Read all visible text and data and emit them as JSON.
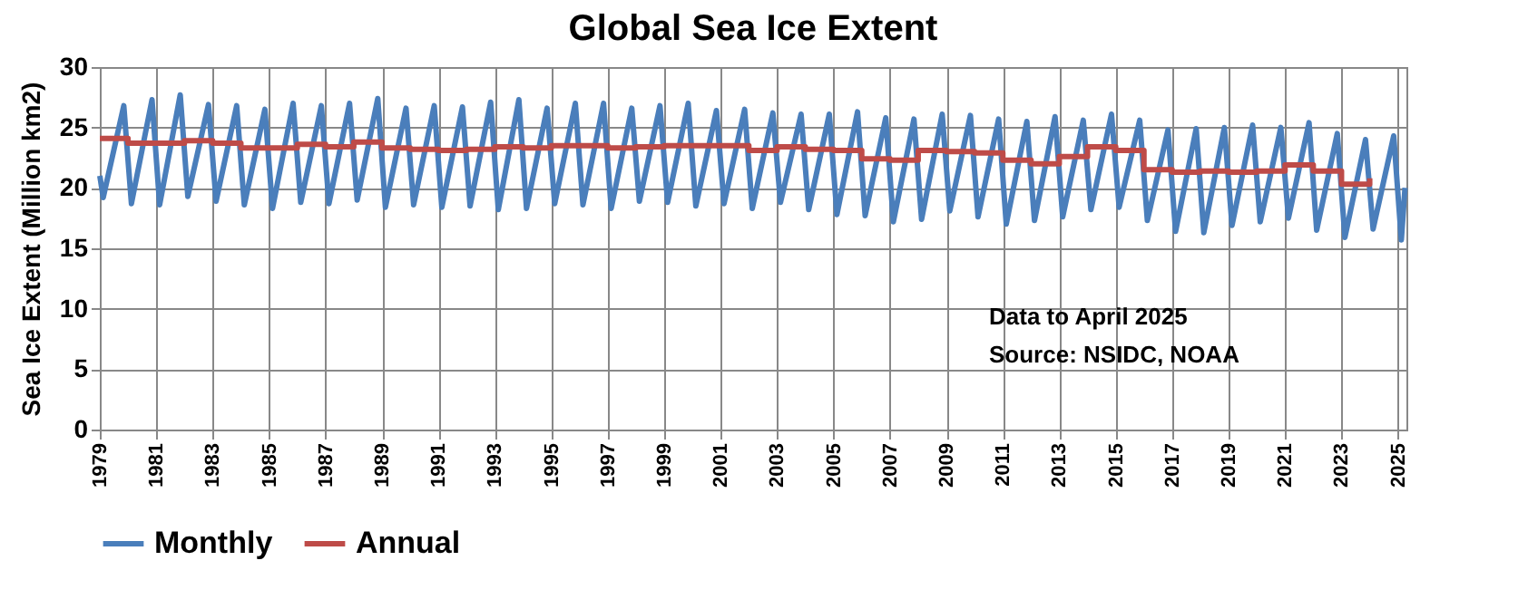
{
  "chart_data": {
    "type": "line",
    "title": "Global Sea Ice Extent",
    "ylabel": "Sea Ice Extent (Million km2)",
    "annotations": [
      "Data to April 2025",
      "Source: NSIDC, NOAA"
    ],
    "xlim": [
      1979,
      2025.3
    ],
    "xticks": [
      1979,
      1981,
      1983,
      1985,
      1987,
      1989,
      1991,
      1993,
      1995,
      1997,
      1999,
      2001,
      2003,
      2005,
      2007,
      2009,
      2011,
      2013,
      2015,
      2017,
      2019,
      2021,
      2023,
      2025
    ],
    "ylim": [
      0,
      30
    ],
    "yticks": [
      0,
      5,
      10,
      15,
      20,
      25,
      30
    ],
    "grid": true,
    "legend": "bottom",
    "line_style": "solid",
    "marker": "none",
    "series": [
      {
        "name": "Monthly",
        "type": "line",
        "color": "#4a7ebb",
        "x": [
          1979.0,
          1979.12,
          1979.85,
          1980.12,
          1980.85,
          1981.12,
          1981.85,
          1982.12,
          1982.85,
          1983.12,
          1983.85,
          1984.12,
          1984.85,
          1985.12,
          1985.85,
          1986.12,
          1986.85,
          1987.12,
          1987.85,
          1988.12,
          1988.85,
          1989.12,
          1989.85,
          1990.12,
          1990.85,
          1991.12,
          1991.85,
          1992.12,
          1992.85,
          1993.12,
          1993.85,
          1994.12,
          1994.85,
          1995.12,
          1995.85,
          1996.12,
          1996.85,
          1997.12,
          1997.85,
          1998.12,
          1998.85,
          1999.12,
          1999.85,
          2000.12,
          2000.85,
          2001.12,
          2001.85,
          2002.12,
          2002.85,
          2003.12,
          2003.85,
          2004.12,
          2004.85,
          2005.12,
          2005.85,
          2006.12,
          2006.85,
          2007.12,
          2007.85,
          2008.12,
          2008.85,
          2009.12,
          2009.85,
          2010.12,
          2010.85,
          2011.12,
          2011.85,
          2012.12,
          2012.85,
          2013.12,
          2013.85,
          2014.12,
          2014.85,
          2015.12,
          2015.85,
          2016.12,
          2016.85,
          2017.12,
          2017.85,
          2018.12,
          2018.85,
          2019.12,
          2019.85,
          2020.12,
          2020.85,
          2021.12,
          2021.85,
          2022.12,
          2022.85,
          2023.12,
          2023.85,
          2024.12,
          2024.85,
          2025.12,
          2025.25
        ],
        "values": [
          21,
          19.2,
          26.8,
          18.7,
          27.3,
          18.6,
          27.7,
          19.3,
          26.9,
          18.9,
          26.8,
          18.6,
          26.5,
          18.3,
          27,
          18.8,
          26.8,
          18.7,
          27,
          19,
          27.4,
          18.4,
          26.6,
          18.6,
          26.8,
          18.4,
          26.7,
          18.5,
          27.1,
          18.2,
          27.3,
          18.3,
          26.6,
          18.7,
          27,
          18.6,
          27,
          18.3,
          26.6,
          18.9,
          26.8,
          18.8,
          27,
          18.5,
          26.4,
          18.7,
          26.5,
          18.3,
          26.2,
          18.8,
          26.1,
          18.2,
          26.1,
          17.8,
          26.3,
          17.7,
          25.8,
          17.2,
          25.7,
          17.4,
          26.1,
          18.1,
          26,
          17.6,
          25.7,
          17,
          25.5,
          17.3,
          25.9,
          17.6,
          25.6,
          18.2,
          26.1,
          18.4,
          25.6,
          17.3,
          24.8,
          16.4,
          24.9,
          16.3,
          25,
          16.9,
          25.2,
          17.2,
          25,
          17.5,
          25.4,
          16.5,
          24.5,
          15.9,
          24,
          16.6,
          24.3,
          15.7,
          20
        ]
      },
      {
        "name": "Annual",
        "type": "step",
        "color": "#be4b48",
        "x": [
          1979,
          1980,
          1981,
          1982,
          1983,
          1984,
          1985,
          1986,
          1987,
          1988,
          1989,
          1990,
          1991,
          1992,
          1993,
          1994,
          1995,
          1996,
          1997,
          1998,
          1999,
          2000,
          2001,
          2002,
          2003,
          2004,
          2005,
          2006,
          2007,
          2008,
          2009,
          2010,
          2011,
          2012,
          2013,
          2014,
          2015,
          2016,
          2017,
          2018,
          2019,
          2020,
          2021,
          2022,
          2023,
          2024
        ],
        "values": [
          24.1,
          23.7,
          23.7,
          23.9,
          23.7,
          23.3,
          23.3,
          23.6,
          23.4,
          23.8,
          23.3,
          23.2,
          23.1,
          23.2,
          23.4,
          23.3,
          23.5,
          23.5,
          23.3,
          23.4,
          23.5,
          23.5,
          23.5,
          23.1,
          23.4,
          23.2,
          23.1,
          22.4,
          22.3,
          23.1,
          23,
          22.9,
          22.3,
          22,
          22.6,
          23.4,
          23.1,
          21.5,
          21.3,
          21.4,
          21.3,
          21.4,
          21.9,
          21.4,
          20.3,
          20.8
        ]
      }
    ]
  }
}
